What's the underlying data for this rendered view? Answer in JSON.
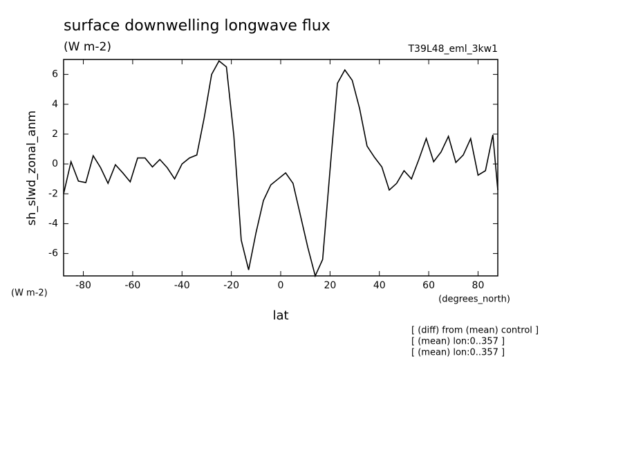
{
  "chart_data": {
    "type": "line",
    "title": "surface downwelling longwave flux",
    "subtitle": "(W m-2)",
    "dataset": "T39L48_eml_3kw1",
    "y_label": "sh_slwd_zonal_anm",
    "y_units": "(W m-2)",
    "x_units": "(degrees_north)",
    "x_label": "lat",
    "annotations": [
      "[ (diff) from (mean) control ]",
      "[ (mean) lon:0..357 ]",
      "[ (mean) lon:0..357 ]"
    ],
    "x": [
      -88,
      -85,
      -82,
      -79,
      -76,
      -73,
      -70,
      -67,
      -64,
      -61,
      -58,
      -55,
      -52,
      -49,
      -46,
      -43,
      -40,
      -37,
      -34,
      -31,
      -28,
      -25,
      -22,
      -19,
      -16,
      -13,
      -10,
      -7,
      -4,
      -1,
      2,
      5,
      8,
      11,
      14,
      17,
      20,
      23,
      26,
      29,
      32,
      35,
      38,
      41,
      44,
      47,
      50,
      53,
      56,
      59,
      62,
      65,
      68,
      71,
      74,
      77,
      80,
      83,
      86,
      88
    ],
    "series": [
      {
        "name": "sh_slwd_zonal_anm",
        "color": "#000000",
        "values": [
          -2.0,
          0.15,
          -1.15,
          -1.25,
          0.55,
          -0.25,
          -1.3,
          -0.05,
          -0.6,
          -1.2,
          0.4,
          0.4,
          -0.2,
          0.3,
          -0.25,
          -1.0,
          0,
          0.4,
          0.6,
          3.1,
          6.0,
          6.9,
          6.5,
          1.9,
          -5.1,
          -7.1,
          -4.6,
          -2.45,
          -1.4,
          -1.0,
          -0.6,
          -1.3,
          -3.45,
          -5.6,
          -7.5,
          -6.4,
          -0.4,
          5.4,
          6.3,
          5.6,
          3.7,
          1.2,
          0.45,
          -0.2,
          -1.75,
          -1.3,
          -0.45,
          -1.0,
          0.3,
          1.7,
          0.15,
          0.8,
          1.85,
          0.1,
          0.6,
          1.7,
          -0.75,
          -0.45,
          1.95,
          -1.75
        ]
      }
    ],
    "xlim": [
      -88,
      88
    ],
    "xticks": [
      -80,
      -60,
      -40,
      -20,
      0,
      20,
      40,
      60,
      80
    ],
    "ylim": [
      -7.5,
      7
    ],
    "yticks": [
      -6,
      -4,
      -2,
      0,
      2,
      4,
      6
    ],
    "grid": false
  }
}
